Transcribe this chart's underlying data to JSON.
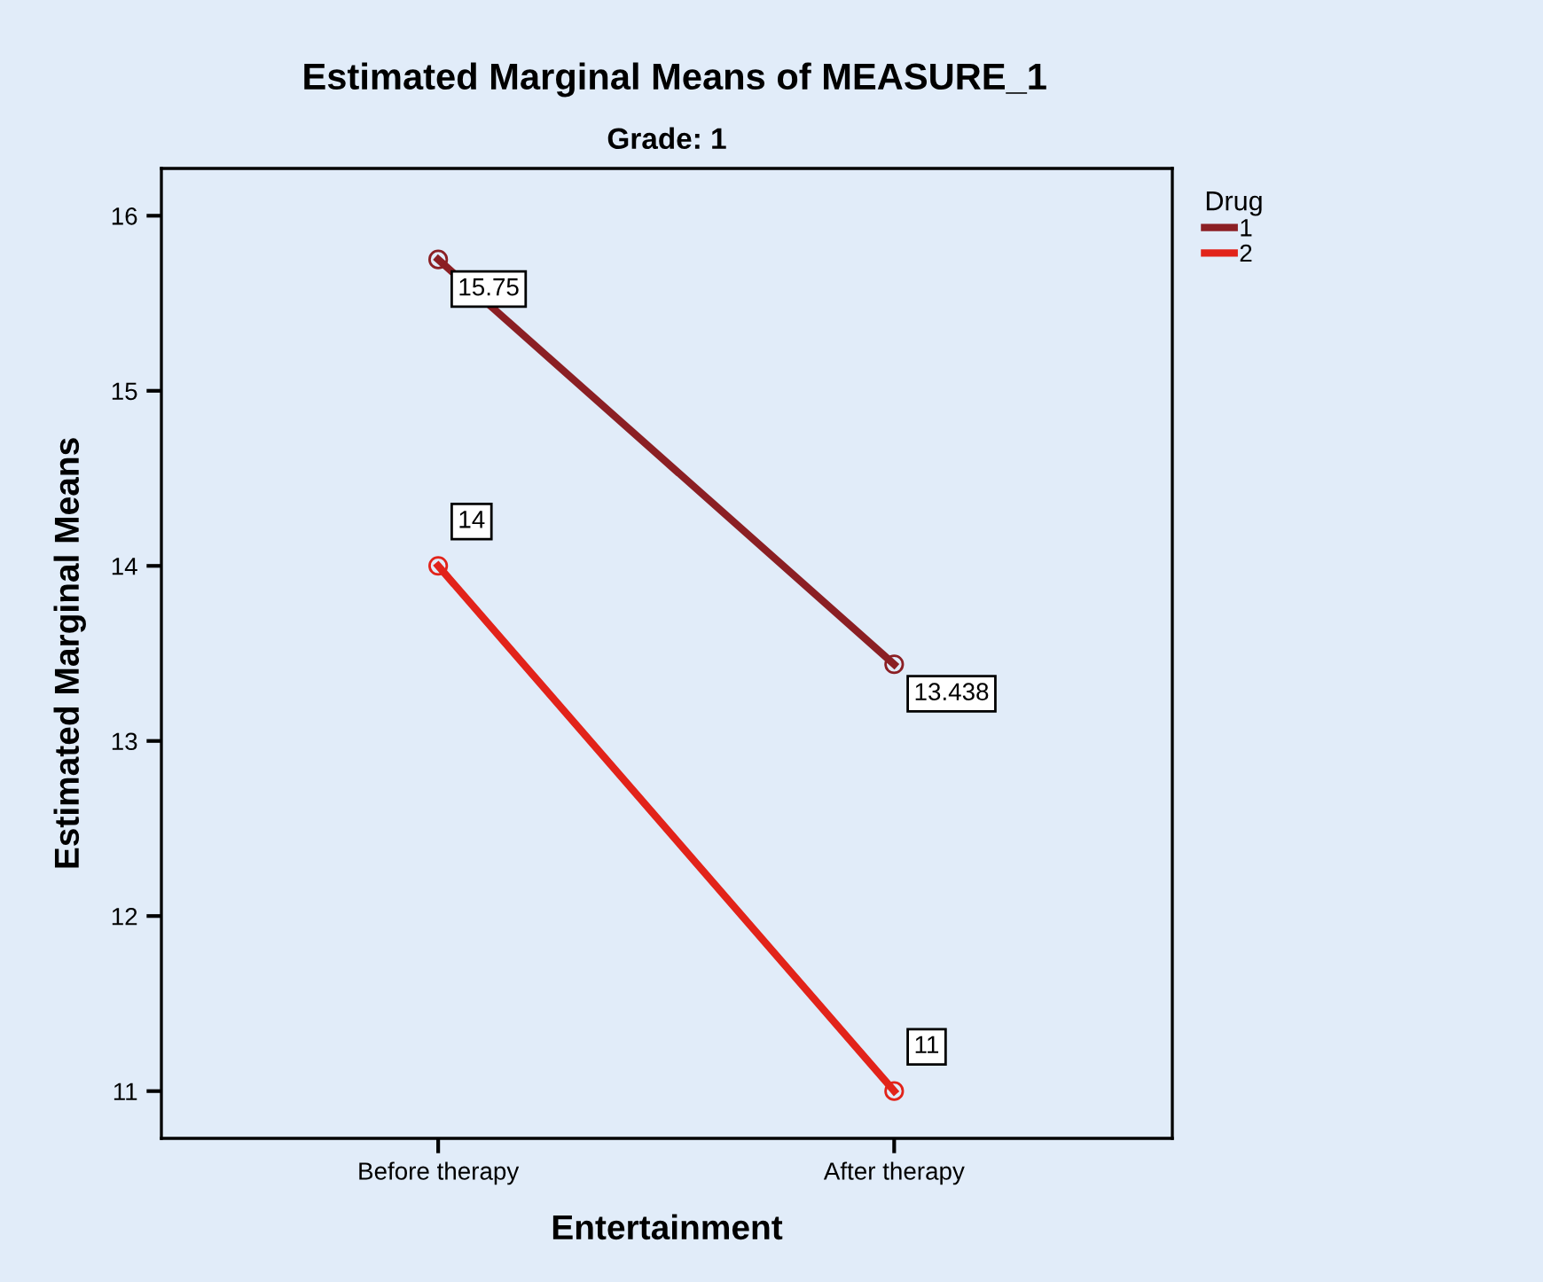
{
  "chart_data": {
    "type": "line",
    "title": "Estimated Marginal Means of MEASURE_1",
    "subtitle": "Grade: 1",
    "xlabel": "Entertainment",
    "ylabel": "Estimated Marginal Means",
    "legend_title": "Drug",
    "categories": [
      "Before therapy",
      "After therapy"
    ],
    "series": [
      {
        "name": "1",
        "color": "#8b1f24",
        "values": [
          15.75,
          13.438
        ],
        "value_labels": [
          "15.75",
          "13.438"
        ]
      },
      {
        "name": "2",
        "color": "#e2231a",
        "values": [
          14,
          11
        ],
        "value_labels": [
          "14",
          "11"
        ]
      }
    ],
    "ylim": [
      10.73,
      16.27
    ],
    "yticks": [
      11,
      12,
      13,
      14,
      15,
      16
    ],
    "grid": false,
    "legend": "top right",
    "marker": "circle",
    "line_style": "solid"
  }
}
